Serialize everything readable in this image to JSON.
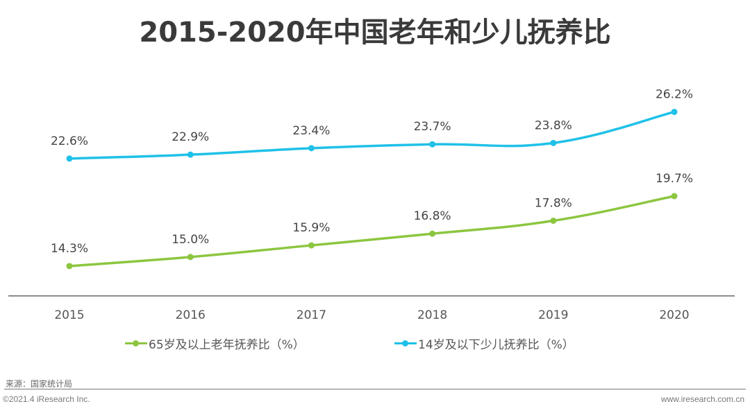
{
  "chart_data": {
    "type": "line",
    "title": "2015-2020年中国老年和少儿抚养比",
    "categories": [
      "2015",
      "2016",
      "2017",
      "2018",
      "2019",
      "2020"
    ],
    "series": [
      {
        "name": "65岁及以上老年抚养比（%）",
        "color": "#8cc63f",
        "values": [
          14.3,
          15.0,
          15.9,
          16.8,
          17.8,
          19.7
        ],
        "labels": [
          "14.3%",
          "15.0%",
          "15.9%",
          "16.8%",
          "17.8%",
          "19.7%"
        ]
      },
      {
        "name": "14岁及以下少儿抚养比（%）",
        "color": "#1fc1e8",
        "values": [
          22.6,
          22.9,
          23.4,
          23.7,
          23.8,
          26.2
        ],
        "labels": [
          "22.6%",
          "22.9%",
          "23.4%",
          "23.7%",
          "23.8%",
          "26.2%"
        ]
      }
    ],
    "ylim": [
      12,
      28
    ],
    "grid": false,
    "legend": "bottom"
  },
  "footer": {
    "source": "来源：国家统计局",
    "copyright": "©2021.4 iResearch Inc.",
    "website": "www.iresearch.com.cn"
  }
}
